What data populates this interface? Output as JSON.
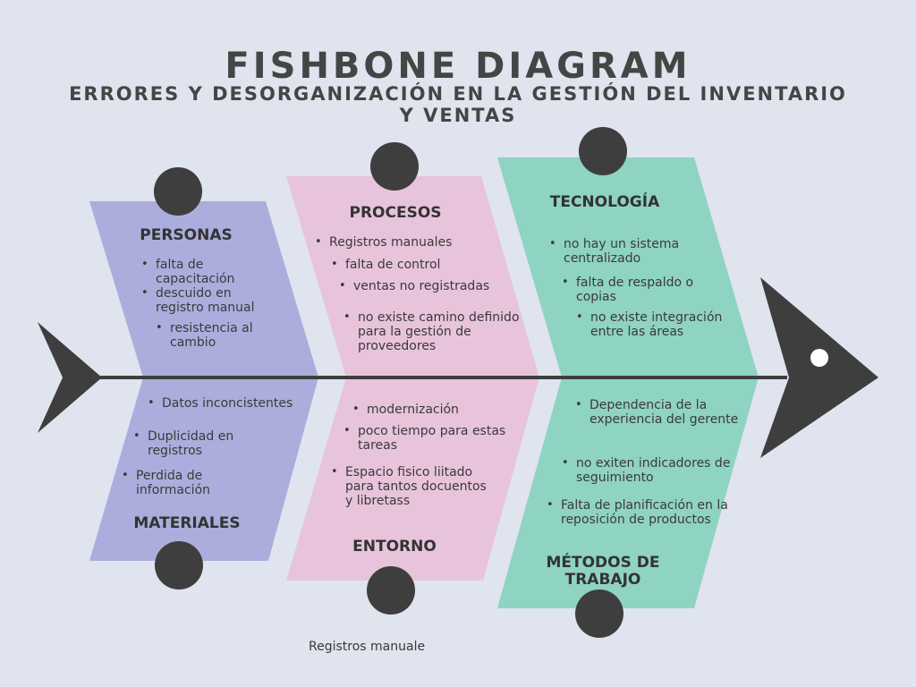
{
  "title": "FISHBONE DIAGRAM",
  "subtitle": "ERRORES Y DESORGANIZACIÓN EN LA GESTIÓN DEL INVENTARIO Y VENTAS",
  "colors": {
    "background": "#dfe4ee",
    "personas": "#abaedc",
    "procesos": "#e8c4dc",
    "tecnologia": "#8fd3c3",
    "dark": "#3e3e3e"
  },
  "categories": {
    "personas": {
      "label": "PERSONAS",
      "items": [
        "falta de capacitación",
        "descuido en registro manual",
        "resistencia al cambio"
      ]
    },
    "procesos": {
      "label": "PROCESOS",
      "items": [
        "Registros manuales",
        "falta de control",
        "ventas no registradas",
        "no existe camino definido para la gestión de proveedores"
      ]
    },
    "tecnologia": {
      "label": "TECNOLOGÍA",
      "items": [
        "no hay un sistema centralizado",
        "falta de respaldo o copias",
        "no existe integración entre las áreas"
      ]
    },
    "materiales": {
      "label": "MATERIALES",
      "items": [
        "Datos inconcistentes",
        "Duplicidad en registros",
        "Perdida de información"
      ]
    },
    "entorno": {
      "label": "ENTORNO",
      "items": [
        "modernización",
        "poco tiempo para estas tareas",
        "Espacio fisico liitado para tantos docuentos y libretass"
      ]
    },
    "metodos": {
      "label": "MÉTODOS DE TRABAJO",
      "items": [
        "Dependencia de la experiencia del gerente",
        "no exiten indicadores de seguimiento",
        "Falta de planificación en la reposición de productos"
      ]
    }
  },
  "footer": "Registros manuale"
}
